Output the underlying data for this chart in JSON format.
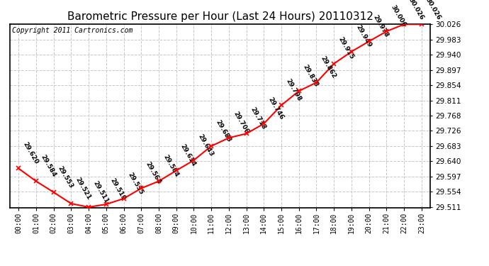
{
  "title": "Barometric Pressure per Hour (Last 24 Hours) 20110312",
  "copyright": "Copyright 2011 Cartronics.com",
  "hours": [
    "00:00",
    "01:00",
    "02:00",
    "03:00",
    "04:00",
    "05:00",
    "06:00",
    "07:00",
    "08:00",
    "09:00",
    "10:00",
    "11:00",
    "12:00",
    "13:00",
    "14:00",
    "15:00",
    "16:00",
    "17:00",
    "18:00",
    "19:00",
    "20:00",
    "21:00",
    "22:00",
    "23:00"
  ],
  "values": [
    29.62,
    29.584,
    29.553,
    29.521,
    29.511,
    29.519,
    29.535,
    29.564,
    29.584,
    29.614,
    29.643,
    29.683,
    29.706,
    29.718,
    29.746,
    29.798,
    29.838,
    29.862,
    29.915,
    29.949,
    29.978,
    30.006,
    30.026,
    30.026
  ],
  "ylim_min": 29.511,
  "ylim_max": 30.026,
  "line_color": "#ff0000",
  "marker_color": "#ff0000",
  "bg_color": "#ffffff",
  "grid_color": "#c8c8c8",
  "title_fontsize": 11,
  "copyright_fontsize": 7,
  "data_label_fontsize": 6.5,
  "ytick_values": [
    29.511,
    29.554,
    29.597,
    29.64,
    29.683,
    29.726,
    29.768,
    29.811,
    29.854,
    29.897,
    29.94,
    29.983,
    30.026
  ],
  "border_color": "#000000"
}
